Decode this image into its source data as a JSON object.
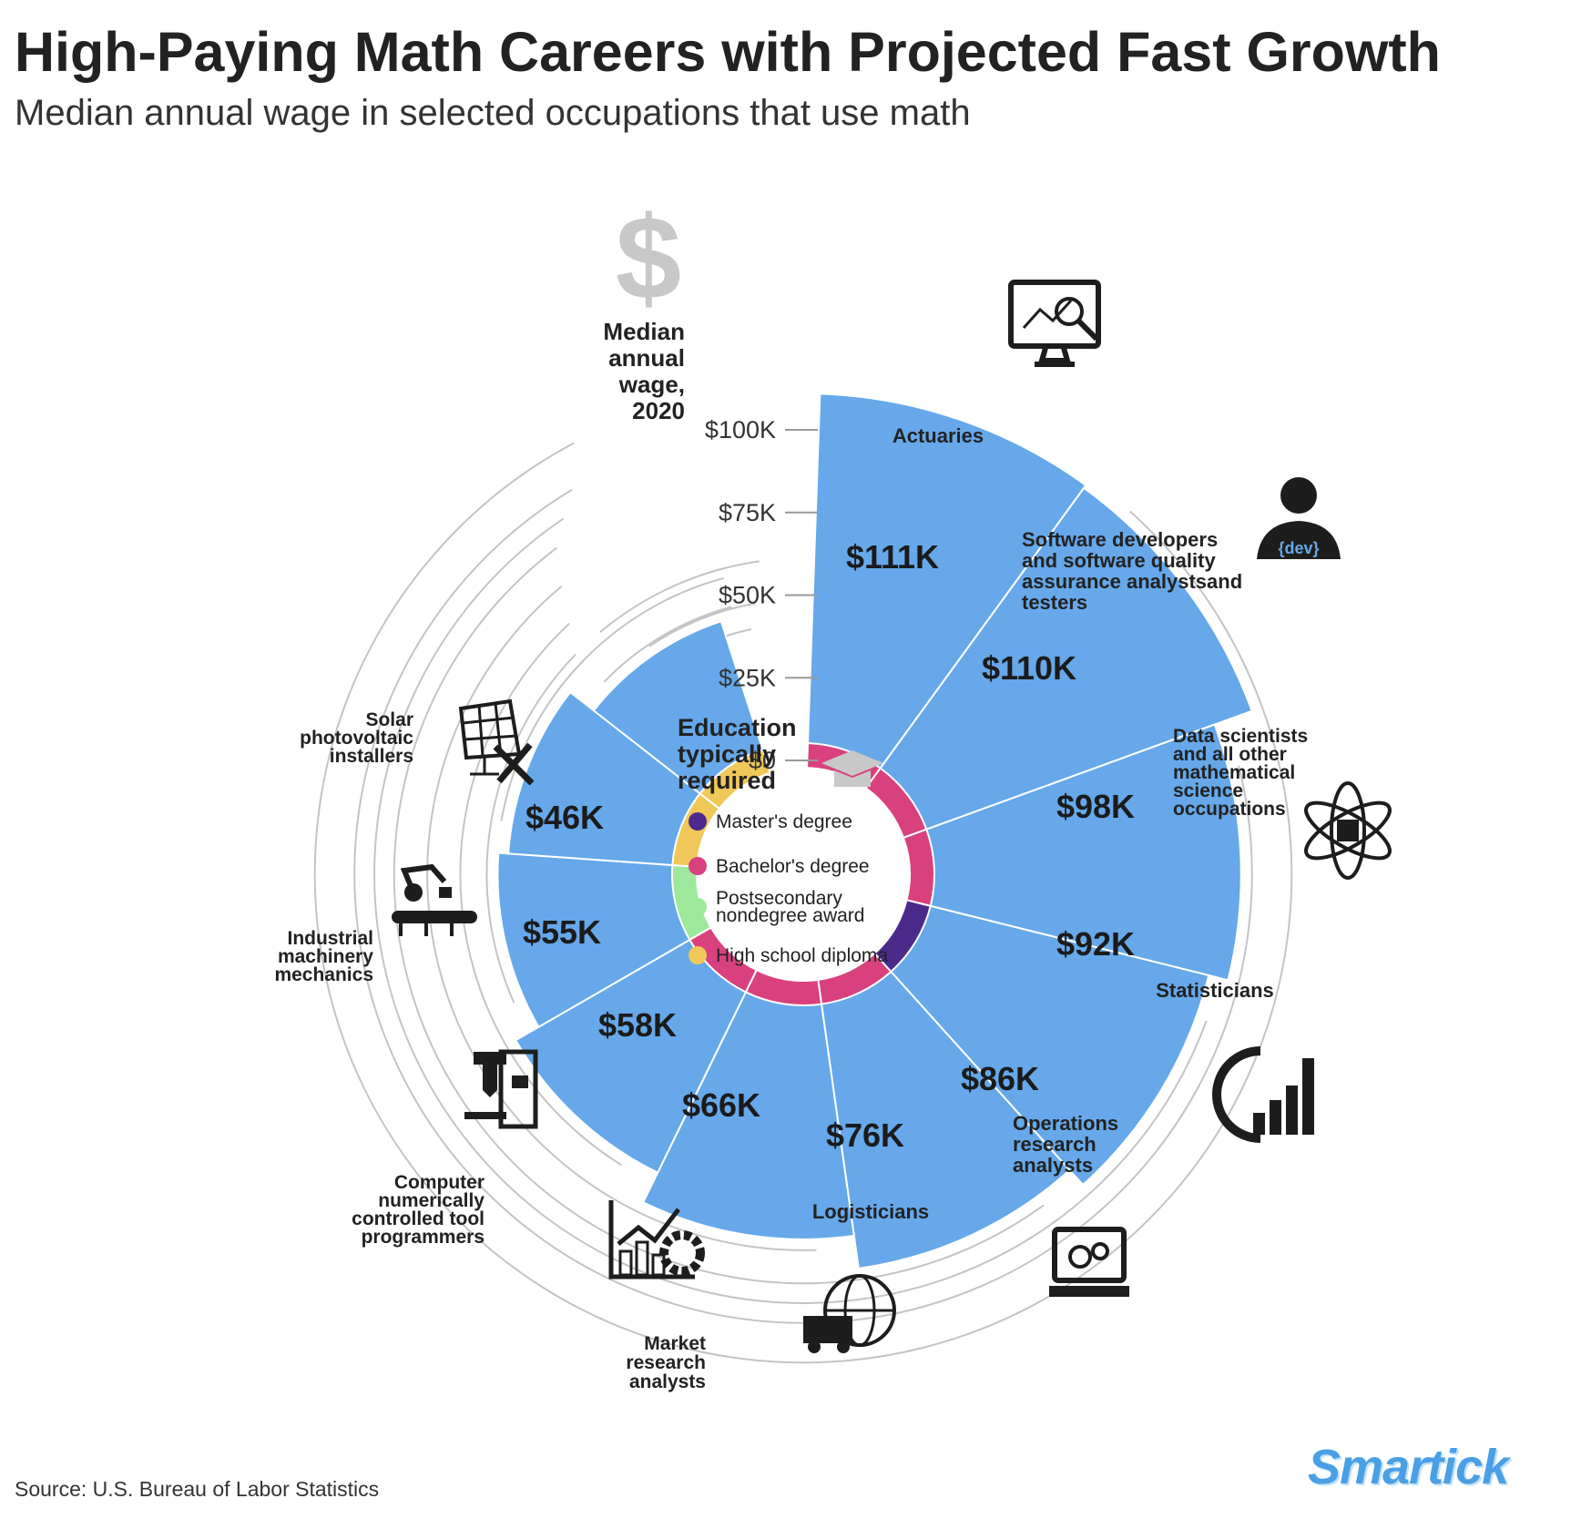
{
  "header": {
    "title": "High-Paying Math Careers with Projected Fast Growth",
    "subtitle": "Median annual wage in selected occupations that use math"
  },
  "source": "Source: U.S. Bureau of Labor Statistics",
  "brand": "Smartick",
  "axis": {
    "title_lines": [
      "Median",
      "annual",
      "wage,",
      "2020"
    ],
    "dollar_symbol": "$"
  },
  "legend": {
    "title_lines": [
      "Education",
      "typically",
      "required"
    ],
    "items": [
      {
        "label_lines": [
          "Master's degree"
        ],
        "color": "#4b2a8c"
      },
      {
        "label_lines": [
          "Bachelor's degree"
        ],
        "color": "#d9417e"
      },
      {
        "label_lines": [
          "Postsecondary",
          "nondegree award"
        ],
        "color": "#9ee89b"
      },
      {
        "label_lines": [
          "High school diploma"
        ],
        "color": "#f0c85a"
      }
    ]
  },
  "colors": {
    "bar": "#66a8ea",
    "masters": "#4b2a8c",
    "bachelors": "#d9417e",
    "postsecondary": "#9ee89b",
    "high_school": "#f0c85a",
    "guide": "#c4c4c4"
  },
  "chart_data": {
    "type": "bar",
    "layout": "radial",
    "title": "High-Paying Math Careers with Projected Fast Growth",
    "subtitle": "Median annual wage in selected occupations that use math",
    "ylabel": "Median annual wage, 2020",
    "ylim": [
      0,
      111000
    ],
    "y_ticks": [
      0,
      25000,
      50000,
      75000,
      100000
    ],
    "y_tick_labels": [
      "$0",
      "$25K",
      "$50K",
      "$75K",
      "$100K"
    ],
    "categories": [
      "Actuaries",
      "Software developers and software quality assurance analystsand testers",
      "Data scientists and all other mathematical science occupations",
      "Statisticians",
      "Operations research analysts",
      "Logisticians",
      "Market research analysts",
      "Computer numerically controlled tool programmers",
      "Industrial machinery mechanics",
      "Solar photovoltaic installers"
    ],
    "series": [
      {
        "values": [
          111000,
          110000,
          98000,
          92000,
          86000,
          76000,
          66000,
          58000,
          55000,
          46000
        ],
        "value_labels": [
          "$111K",
          "$110K",
          "$98K",
          "$92K",
          "$86K",
          "$76K",
          "$66K",
          "$58K",
          "$55K",
          "$46K"
        ]
      }
    ],
    "education": [
      "Bachelor's degree",
      "Bachelor's degree",
      "Bachelor's degree",
      "Master's degree",
      "Bachelor's degree",
      "Bachelor's degree",
      "Bachelor's degree",
      "Postsecondary nondegree award",
      "High school diploma",
      "High school diploma"
    ],
    "category_label_lines": [
      [
        "Actuaries"
      ],
      [
        "Software developers",
        "and software quality",
        "assurance analystsand",
        "testers"
      ],
      [
        "Data scientists",
        "and all other",
        "mathematical",
        "science",
        "occupations"
      ],
      [
        "Statisticians"
      ],
      [
        "Operations",
        "research",
        "analysts"
      ],
      [
        "Logisticians"
      ],
      [
        "Market",
        "research",
        "analysts"
      ],
      [
        "Computer",
        "numerically",
        "controlled tool",
        "programmers"
      ],
      [
        "Industrial",
        "machinery",
        "mechanics"
      ],
      [
        "Solar",
        "photovoltaic",
        "installers"
      ]
    ],
    "icons": [
      "monitor-chart-icon",
      "developer-icon",
      "atom-icon",
      "bar-gauge-icon",
      "laptop-gears-icon",
      "globe-truck-icon",
      "growth-gear-icon",
      "cnc-machine-icon",
      "robot-arm-conveyor-icon",
      "solar-panel-tools-icon"
    ],
    "icon_code_text": "{dev}",
    "legend": "center"
  }
}
